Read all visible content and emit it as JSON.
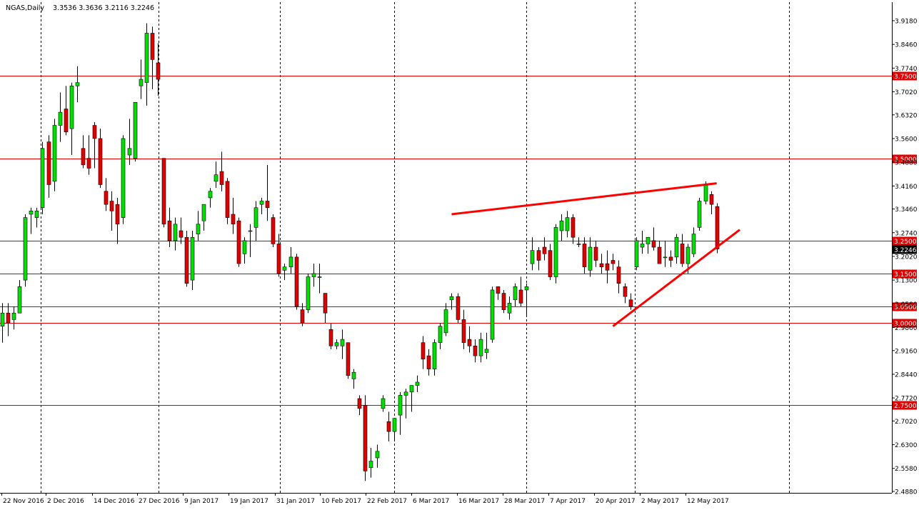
{
  "header": {
    "symbol": "NGAS,Daily",
    "ohlc": "3.3536 3.3636 3.2116 3.2246"
  },
  "colors": {
    "background": "#ffffff",
    "bull": "#00e000",
    "bear": "#e00000",
    "wick": "#000000",
    "level_line": "#e00000",
    "trend_line": "#ff0000",
    "grid": "#000000"
  },
  "chart_data": {
    "type": "candlestick",
    "title": "NGAS,Daily",
    "ylim": [
      2.488,
      3.935
    ],
    "y_ticks": [
      "3.9180",
      "3.8460",
      "3.7740",
      "3.7020",
      "3.6320",
      "3.5600",
      "3.4880",
      "3.4160",
      "3.3460",
      "3.2740",
      "3.2020",
      "3.1300",
      "3.0580",
      "2.9860",
      "2.9160",
      "2.8440",
      "2.7720",
      "2.7020",
      "2.6300",
      "2.5580",
      "2.4880"
    ],
    "x_labels": [
      "22 Nov 2016",
      "2 Dec 2016",
      "14 Dec 2016",
      "27 Dec 2016",
      "9 Jan 2017",
      "19 Jan 2017",
      "31 Jan 2017",
      "10 Feb 2017",
      "22 Feb 2017",
      "6 Mar 2017",
      "16 Mar 2017",
      "28 Mar 2017",
      "7 Apr 2017",
      "20 Apr 2017",
      "2 May 2017",
      "12 May 2017"
    ],
    "grid": "vertical dotted at date labels",
    "horizontal_levels": [
      {
        "label": "3.7500",
        "value": 3.75
      },
      {
        "label": "3.5000",
        "value": 3.5
      },
      {
        "label": "3.2500",
        "value": 3.25
      },
      {
        "label": "3.1500",
        "value": 3.15
      },
      {
        "label": "3.0500",
        "value": 3.05
      },
      {
        "label": "3.0000",
        "value": 3.0
      },
      {
        "label": "2.7500",
        "value": 2.75
      }
    ],
    "current_price": {
      "label": "3.2246",
      "value": 3.2246
    },
    "trendlines": [
      {
        "name": "upper resistance",
        "from": [
          78,
          3.33
        ],
        "to": [
          124,
          3.424
        ]
      },
      {
        "name": "rising support",
        "from": [
          106,
          2.99
        ],
        "to": [
          128,
          3.283
        ]
      }
    ],
    "candles": [
      [
        2.99,
        3.06,
        2.94,
        3.03
      ],
      [
        3.03,
        3.06,
        2.96,
        3.0
      ],
      [
        3.01,
        3.05,
        2.98,
        3.03
      ],
      [
        3.03,
        3.13,
        3.03,
        3.11
      ],
      [
        3.13,
        3.33,
        3.11,
        3.32
      ],
      [
        3.33,
        3.35,
        3.27,
        3.34
      ],
      [
        3.32,
        3.35,
        3.29,
        3.34
      ],
      [
        3.35,
        3.55,
        3.33,
        3.53
      ],
      [
        3.55,
        3.57,
        3.38,
        3.42
      ],
      [
        3.43,
        3.62,
        3.4,
        3.6
      ],
      [
        3.6,
        3.7,
        3.55,
        3.64
      ],
      [
        3.65,
        3.72,
        3.57,
        3.58
      ],
      [
        3.59,
        3.73,
        3.51,
        3.72
      ],
      [
        3.72,
        3.78,
        3.67,
        3.73
      ],
      [
        3.53,
        3.57,
        3.47,
        3.48
      ],
      [
        3.5,
        3.57,
        3.45,
        3.47
      ],
      [
        3.6,
        3.61,
        3.47,
        3.56
      ],
      [
        3.56,
        3.59,
        3.41,
        3.42
      ],
      [
        3.4,
        3.44,
        3.34,
        3.36
      ],
      [
        3.37,
        3.4,
        3.28,
        3.34
      ],
      [
        3.36,
        3.38,
        3.24,
        3.3
      ],
      [
        3.32,
        3.57,
        3.3,
        3.56
      ],
      [
        3.51,
        3.62,
        3.48,
        3.53
      ],
      [
        3.5,
        3.67,
        3.49,
        3.67
      ],
      [
        3.72,
        3.8,
        3.68,
        3.74
      ],
      [
        3.73,
        3.91,
        3.66,
        3.88
      ],
      [
        3.88,
        3.9,
        3.71,
        3.8
      ],
      [
        3.79,
        3.85,
        3.69,
        3.74
      ],
      [
        3.5,
        3.5,
        3.29,
        3.3
      ],
      [
        3.31,
        3.35,
        3.23,
        3.25
      ],
      [
        3.25,
        3.32,
        3.22,
        3.3
      ],
      [
        3.28,
        3.32,
        3.24,
        3.26
      ],
      [
        3.26,
        3.28,
        3.11,
        3.12
      ],
      [
        3.13,
        3.28,
        3.1,
        3.26
      ],
      [
        3.27,
        3.34,
        3.25,
        3.3
      ],
      [
        3.31,
        3.36,
        3.28,
        3.36
      ],
      [
        3.38,
        3.41,
        3.35,
        3.4
      ],
      [
        3.43,
        3.49,
        3.41,
        3.45
      ],
      [
        3.46,
        3.52,
        3.4,
        3.42
      ],
      [
        3.43,
        3.44,
        3.3,
        3.32
      ],
      [
        3.33,
        3.38,
        3.27,
        3.3
      ],
      [
        3.31,
        3.32,
        3.17,
        3.18
      ],
      [
        3.21,
        3.26,
        3.18,
        3.25
      ],
      [
        3.28,
        3.3,
        3.2,
        3.28
      ],
      [
        3.29,
        3.37,
        3.25,
        3.35
      ],
      [
        3.36,
        3.38,
        3.33,
        3.37
      ],
      [
        3.37,
        3.48,
        3.31,
        3.35
      ],
      [
        3.32,
        3.33,
        3.23,
        3.24
      ],
      [
        3.24,
        3.27,
        3.14,
        3.15
      ],
      [
        3.16,
        3.18,
        3.13,
        3.17
      ],
      [
        3.17,
        3.23,
        3.15,
        3.2
      ],
      [
        3.2,
        3.21,
        3.04,
        3.05
      ],
      [
        3.04,
        3.06,
        2.99,
        3.0
      ],
      [
        3.04,
        3.15,
        3.03,
        3.14
      ],
      [
        3.14,
        3.18,
        3.11,
        3.15
      ],
      [
        3.14,
        3.18,
        3.09,
        3.14
      ],
      [
        3.09,
        3.09,
        3.0,
        3.03
      ],
      [
        2.98,
        3.0,
        2.92,
        2.93
      ],
      [
        2.93,
        2.95,
        2.92,
        2.94
      ],
      [
        2.93,
        2.98,
        2.89,
        2.95
      ],
      [
        2.94,
        2.94,
        2.83,
        2.84
      ],
      [
        2.83,
        2.86,
        2.8,
        2.85
      ],
      [
        2.77,
        2.78,
        2.72,
        2.74
      ],
      [
        2.75,
        2.78,
        2.52,
        2.55
      ],
      [
        2.56,
        2.62,
        2.53,
        2.58
      ],
      [
        2.59,
        2.63,
        2.56,
        2.61
      ],
      [
        2.74,
        2.78,
        2.73,
        2.77
      ],
      [
        2.7,
        2.73,
        2.64,
        2.67
      ],
      [
        2.67,
        2.71,
        2.64,
        2.71
      ],
      [
        2.72,
        2.79,
        2.66,
        2.78
      ],
      [
        2.78,
        2.8,
        2.71,
        2.79
      ],
      [
        2.79,
        2.81,
        2.73,
        2.81
      ],
      [
        2.81,
        2.84,
        2.79,
        2.82
      ],
      [
        2.94,
        2.96,
        2.86,
        2.89
      ],
      [
        2.9,
        2.92,
        2.84,
        2.86
      ],
      [
        2.86,
        2.95,
        2.84,
        2.94
      ],
      [
        2.94,
        3.0,
        2.92,
        2.99
      ],
      [
        2.97,
        3.06,
        2.96,
        3.04
      ],
      [
        3.07,
        3.09,
        3.04,
        3.08
      ],
      [
        3.08,
        3.09,
        3.0,
        3.01
      ],
      [
        3.01,
        3.04,
        2.92,
        2.94
      ],
      [
        2.95,
        2.99,
        2.91,
        2.93
      ],
      [
        2.93,
        2.95,
        2.88,
        2.9
      ],
      [
        2.9,
        2.97,
        2.88,
        2.95
      ],
      [
        2.91,
        2.97,
        2.89,
        2.92
      ],
      [
        2.95,
        3.11,
        2.94,
        3.1
      ],
      [
        3.11,
        3.11,
        3.07,
        3.09
      ],
      [
        3.09,
        3.1,
        3.03,
        3.04
      ],
      [
        3.03,
        3.08,
        3.01,
        3.06
      ],
      [
        3.07,
        3.12,
        3.05,
        3.11
      ],
      [
        3.1,
        3.14,
        3.05,
        3.06
      ],
      [
        3.1,
        3.12,
        3.02,
        3.11
      ],
      [
        3.18,
        3.26,
        3.16,
        3.22
      ],
      [
        3.22,
        3.23,
        3.16,
        3.19
      ],
      [
        3.23,
        3.26,
        3.19,
        3.21
      ],
      [
        3.22,
        3.24,
        3.13,
        3.14
      ],
      [
        3.14,
        3.3,
        3.12,
        3.29
      ],
      [
        3.28,
        3.33,
        3.25,
        3.31
      ],
      [
        3.28,
        3.34,
        3.26,
        3.32
      ],
      [
        3.32,
        3.33,
        3.24,
        3.26
      ],
      [
        3.24,
        3.26,
        3.23,
        3.24
      ],
      [
        3.24,
        3.26,
        3.15,
        3.17
      ],
      [
        3.16,
        3.26,
        3.14,
        3.23
      ],
      [
        3.23,
        3.25,
        3.17,
        3.19
      ],
      [
        3.18,
        3.21,
        3.15,
        3.17
      ],
      [
        3.18,
        3.22,
        3.12,
        3.16
      ],
      [
        3.19,
        3.21,
        3.16,
        3.18
      ],
      [
        3.17,
        3.19,
        3.09,
        3.12
      ],
      [
        3.11,
        3.12,
        3.06,
        3.08
      ],
      [
        3.07,
        3.09,
        3.04,
        3.05
      ],
      [
        3.17,
        3.26,
        3.16,
        3.25
      ],
      [
        3.23,
        3.28,
        3.21,
        3.24
      ],
      [
        3.24,
        3.26,
        3.21,
        3.26
      ],
      [
        3.25,
        3.29,
        3.22,
        3.23
      ],
      [
        3.23,
        3.25,
        3.18,
        3.18
      ],
      [
        3.2,
        3.25,
        3.17,
        3.2
      ],
      [
        3.2,
        3.22,
        3.17,
        3.19
      ],
      [
        3.2,
        3.27,
        3.18,
        3.26
      ],
      [
        3.24,
        3.27,
        3.17,
        3.18
      ],
      [
        3.18,
        3.24,
        3.15,
        3.23
      ],
      [
        3.21,
        3.29,
        3.2,
        3.27
      ],
      [
        3.29,
        3.38,
        3.28,
        3.37
      ],
      [
        3.37,
        3.43,
        3.36,
        3.42
      ],
      [
        3.39,
        3.4,
        3.33,
        3.36
      ],
      [
        3.3536,
        3.3636,
        3.2116,
        3.2246
      ]
    ]
  }
}
